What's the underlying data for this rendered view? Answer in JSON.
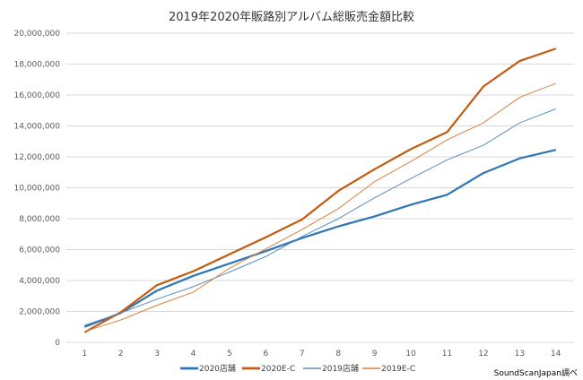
{
  "chart_data": {
    "type": "line",
    "title": "2019年2020年販路別アルバム総販売金額比較",
    "xlabel": "",
    "ylabel": "",
    "x": [
      1,
      2,
      3,
      4,
      5,
      6,
      7,
      8,
      9,
      10,
      11,
      12,
      13,
      14
    ],
    "ylim": [
      0,
      20000000
    ],
    "yticks": [
      0,
      2000000,
      4000000,
      6000000,
      8000000,
      10000000,
      12000000,
      14000000,
      16000000,
      18000000,
      20000000
    ],
    "ytick_labels": [
      "0",
      "2,000,000",
      "4,000,000",
      "6,000,000",
      "8,000,000",
      "10,000,000",
      "12,000,000",
      "14,000,000",
      "16,000,000",
      "18,000,000",
      "20,000,000"
    ],
    "grid": true,
    "legend": "bottom",
    "series": [
      {
        "name": "2020店舗",
        "color": "#2E75B6",
        "width": 2.2,
        "values": [
          1000000,
          1900000,
          3350000,
          4300000,
          5100000,
          5900000,
          6750000,
          7500000,
          8150000,
          8900000,
          9550000,
          10950000,
          11900000,
          12450000
        ]
      },
      {
        "name": "2020E-C",
        "color": "#C55A11",
        "width": 2.2,
        "values": [
          650000,
          1950000,
          3700000,
          4600000,
          5700000,
          6800000,
          7950000,
          9800000,
          11200000,
          12500000,
          13600000,
          16550000,
          18200000,
          19000000
        ]
      },
      {
        "name": "2019店舗",
        "color": "#5B8DC0",
        "width": 1,
        "values": [
          1100000,
          1900000,
          2800000,
          3600000,
          4550000,
          5550000,
          6850000,
          8000000,
          9350000,
          10600000,
          11800000,
          12750000,
          14200000,
          15100000
        ]
      },
      {
        "name": "2019E-C",
        "color": "#D9823F",
        "width": 1,
        "values": [
          700000,
          1450000,
          2400000,
          3250000,
          4800000,
          6050000,
          7300000,
          8650000,
          10400000,
          11700000,
          13100000,
          14200000,
          15850000,
          16750000
        ]
      }
    ]
  },
  "source": "SoundScanJapan調べ"
}
